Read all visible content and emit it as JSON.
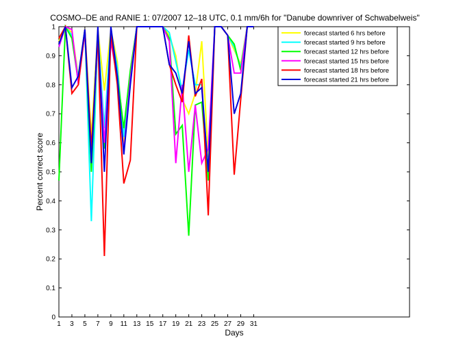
{
  "chart_data": {
    "type": "line",
    "title": "COSMO–DE and RANIE 1: 07/2007 12–18 UTC, 0.1 mm/6h for \"Danube downriver of Schwabelweis\"",
    "xlabel": "Days",
    "ylabel": "Percent correct score",
    "xlim": [
      1,
      55
    ],
    "ylim": [
      0,
      1
    ],
    "x_ticks": [
      1,
      3,
      5,
      7,
      9,
      11,
      13,
      15,
      17,
      19,
      21,
      23,
      25,
      27,
      29,
      31
    ],
    "y_ticks": [
      0,
      0.1,
      0.2,
      0.3,
      0.4,
      0.5,
      0.6,
      0.7,
      0.8,
      0.9,
      1
    ],
    "y_tick_labels": [
      "0",
      "0.1",
      "0.2",
      "0.3",
      "0.4",
      "0.5",
      "0.6",
      "0.7",
      "0.8",
      "0.9",
      "1"
    ],
    "grid": false,
    "legend_position": "top-right",
    "series": [
      {
        "name": "forecast started 6 hrs before",
        "color": "#ffff00",
        "points": [
          [
            1,
            0.95
          ],
          [
            2,
            1
          ],
          [
            3,
            0.98
          ],
          [
            4,
            0.83
          ],
          [
            5,
            0.99
          ],
          [
            6,
            0.62
          ],
          [
            7,
            0.99
          ],
          [
            8,
            0.78
          ],
          [
            9,
            0.99
          ],
          [
            10,
            0.88
          ],
          [
            11,
            0.6
          ],
          [
            12,
            0.82
          ],
          [
            13,
            1
          ],
          [
            14,
            1
          ],
          [
            15,
            1
          ],
          [
            16,
            1
          ],
          [
            17,
            1
          ],
          [
            18,
            0.97
          ],
          [
            19,
            0.9
          ],
          [
            20,
            0.75
          ],
          [
            21,
            0.7
          ],
          [
            22,
            0.77
          ],
          [
            23,
            0.95
          ],
          [
            24,
            0.55
          ],
          [
            25,
            1
          ],
          [
            26,
            1
          ],
          [
            27,
            0.97
          ],
          [
            28,
            0.92
          ],
          [
            29,
            0.87
          ],
          [
            30,
            1
          ],
          [
            31,
            1
          ]
        ]
      },
      {
        "name": "forecast started 9 hrs before",
        "color": "#00ffff",
        "points": [
          [
            1,
            0.93
          ],
          [
            2,
            1
          ],
          [
            3,
            0.97
          ],
          [
            4,
            0.82
          ],
          [
            5,
            0.99
          ],
          [
            6,
            0.33
          ],
          [
            7,
            0.98
          ],
          [
            8,
            0.65
          ],
          [
            9,
            0.98
          ],
          [
            10,
            0.86
          ],
          [
            11,
            0.62
          ],
          [
            12,
            0.84
          ],
          [
            13,
            1
          ],
          [
            14,
            1
          ],
          [
            15,
            1
          ],
          [
            16,
            1
          ],
          [
            17,
            1
          ],
          [
            18,
            0.98
          ],
          [
            19,
            0.88
          ],
          [
            20,
            0.78
          ],
          [
            21,
            0.92
          ],
          [
            22,
            0.8
          ],
          [
            23,
            0.8
          ],
          [
            24,
            0.5
          ],
          [
            25,
            1
          ],
          [
            26,
            1
          ],
          [
            27,
            0.97
          ],
          [
            28,
            0.93
          ],
          [
            29,
            0.86
          ],
          [
            30,
            1
          ],
          [
            31,
            1
          ]
        ]
      },
      {
        "name": "forecast started 12 hrs before",
        "color": "#00ff00",
        "points": [
          [
            1,
            0.47
          ],
          [
            2,
            1
          ],
          [
            3,
            0.96
          ],
          [
            4,
            0.81
          ],
          [
            5,
            0.98
          ],
          [
            6,
            0.5
          ],
          [
            7,
            0.97
          ],
          [
            8,
            0.58
          ],
          [
            9,
            0.96
          ],
          [
            10,
            0.83
          ],
          [
            11,
            0.65
          ],
          [
            12,
            0.85
          ],
          [
            13,
            1
          ],
          [
            14,
            1
          ],
          [
            15,
            1
          ],
          [
            16,
            1
          ],
          [
            17,
            1
          ],
          [
            18,
            0.96
          ],
          [
            19,
            0.63
          ],
          [
            20,
            0.66
          ],
          [
            21,
            0.28
          ],
          [
            22,
            0.73
          ],
          [
            23,
            0.74
          ],
          [
            24,
            0.47
          ],
          [
            25,
            1
          ],
          [
            26,
            1
          ],
          [
            27,
            0.97
          ],
          [
            28,
            0.94
          ],
          [
            29,
            0.85
          ],
          [
            30,
            1
          ],
          [
            31,
            1
          ]
        ]
      },
      {
        "name": "forecast started 15 hrs before",
        "color": "#ff00ff",
        "points": [
          [
            1,
            0.93
          ],
          [
            2,
            1
          ],
          [
            3,
            0.99
          ],
          [
            4,
            0.8
          ],
          [
            5,
            0.98
          ],
          [
            6,
            0.55
          ],
          [
            7,
            0.96
          ],
          [
            8,
            0.6
          ],
          [
            9,
            0.95
          ],
          [
            10,
            0.82
          ],
          [
            11,
            0.57
          ],
          [
            12,
            0.82
          ],
          [
            13,
            1
          ],
          [
            14,
            1
          ],
          [
            15,
            1
          ],
          [
            16,
            1
          ],
          [
            17,
            1
          ],
          [
            18,
            0.95
          ],
          [
            19,
            0.53
          ],
          [
            20,
            0.8
          ],
          [
            21,
            0.5
          ],
          [
            22,
            0.73
          ],
          [
            23,
            0.53
          ],
          [
            24,
            0.58
          ],
          [
            25,
            1
          ],
          [
            26,
            1
          ],
          [
            27,
            0.97
          ],
          [
            28,
            0.84
          ],
          [
            29,
            0.84
          ],
          [
            30,
            1
          ],
          [
            31,
            1
          ]
        ]
      },
      {
        "name": "forecast started 18 hrs before",
        "color": "#ff0000",
        "points": [
          [
            1,
            0.96
          ],
          [
            2,
            1
          ],
          [
            3,
            0.77
          ],
          [
            4,
            0.8
          ],
          [
            5,
            0.99
          ],
          [
            6,
            0.58
          ],
          [
            7,
            0.97
          ],
          [
            8,
            0.21
          ],
          [
            9,
            0.98
          ],
          [
            10,
            0.8
          ],
          [
            11,
            0.46
          ],
          [
            12,
            0.54
          ],
          [
            13,
            1
          ],
          [
            14,
            1
          ],
          [
            15,
            1
          ],
          [
            16,
            1
          ],
          [
            17,
            1
          ],
          [
            18,
            0.87
          ],
          [
            19,
            0.8
          ],
          [
            20,
            0.74
          ],
          [
            21,
            0.97
          ],
          [
            22,
            0.76
          ],
          [
            23,
            0.82
          ],
          [
            24,
            0.35
          ],
          [
            25,
            1
          ],
          [
            26,
            1
          ],
          [
            27,
            0.97
          ],
          [
            28,
            0.49
          ],
          [
            29,
            0.75
          ],
          [
            30,
            1
          ],
          [
            31,
            1
          ]
        ]
      },
      {
        "name": "forecast started 21 hrs before",
        "color": "#0000dd",
        "points": [
          [
            1,
            0.94
          ],
          [
            2,
            1
          ],
          [
            3,
            0.79
          ],
          [
            4,
            0.83
          ],
          [
            5,
            0.99
          ],
          [
            6,
            0.53
          ],
          [
            7,
            1
          ],
          [
            8,
            0.5
          ],
          [
            9,
            1
          ],
          [
            10,
            0.83
          ],
          [
            11,
            0.56
          ],
          [
            12,
            0.8
          ],
          [
            13,
            1
          ],
          [
            14,
            1
          ],
          [
            15,
            1
          ],
          [
            16,
            1
          ],
          [
            17,
            1
          ],
          [
            18,
            0.87
          ],
          [
            19,
            0.84
          ],
          [
            20,
            0.77
          ],
          [
            21,
            0.95
          ],
          [
            22,
            0.77
          ],
          [
            23,
            0.79
          ],
          [
            24,
            0.5
          ],
          [
            25,
            1
          ],
          [
            26,
            1
          ],
          [
            27,
            0.97
          ],
          [
            28,
            0.7
          ],
          [
            29,
            0.77
          ],
          [
            30,
            1
          ],
          [
            31,
            1
          ]
        ]
      }
    ]
  }
}
